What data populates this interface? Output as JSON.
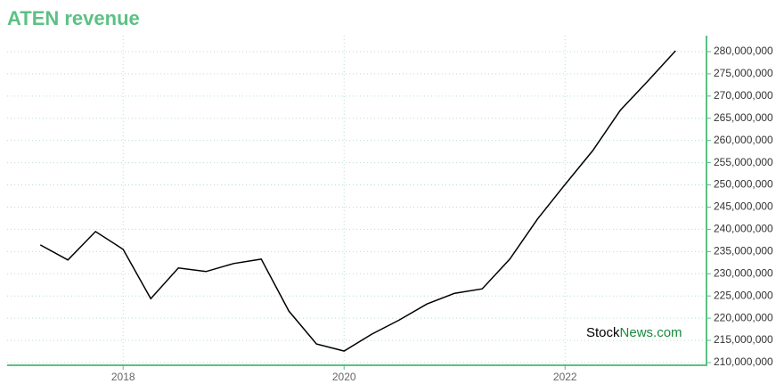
{
  "chart_data": {
    "type": "line",
    "title": "ATEN revenue",
    "watermark": {
      "first": "Stock",
      "second": "News.com"
    },
    "x": [
      2017.25,
      2017.5,
      2017.75,
      2018.0,
      2018.25,
      2018.5,
      2018.75,
      2019.0,
      2019.25,
      2019.5,
      2019.75,
      2020.0,
      2020.25,
      2020.5,
      2020.75,
      2021.0,
      2021.25,
      2021.5,
      2021.75,
      2022.0,
      2022.25,
      2022.5,
      2022.75,
      2023.0
    ],
    "series": [
      {
        "color": "#000000",
        "values": [
          236500000,
          233100000,
          239500000,
          235500000,
          224400000,
          231300000,
          230500000,
          232300000,
          233300000,
          221600000,
          214200000,
          212600000,
          216400000,
          219600000,
          223200000,
          225600000,
          226600000,
          233300000,
          242300000,
          250100000,
          257700000,
          266800000,
          273400000,
          280200000
        ]
      }
    ],
    "xlim": [
      2016.95,
      2023.28
    ],
    "xticks": [
      2018,
      2020,
      2022
    ],
    "ylim": [
      209400000,
      283600000
    ],
    "yticks": [
      {
        "value": 210000000,
        "label": "210,000,000"
      },
      {
        "value": 215000000,
        "label": "215,000,000"
      },
      {
        "value": 220000000,
        "label": "220,000,000"
      },
      {
        "value": 225000000,
        "label": "225,000,000"
      },
      {
        "value": 230000000,
        "label": "230,000,000"
      },
      {
        "value": 235000000,
        "label": "235,000,000"
      },
      {
        "value": 240000000,
        "label": "240,000,000"
      },
      {
        "value": 245000000,
        "label": "245,000,000"
      },
      {
        "value": 250000000,
        "label": "250,000,000"
      },
      {
        "value": 255000000,
        "label": "255,000,000"
      },
      {
        "value": 260000000,
        "label": "260,000,000"
      },
      {
        "value": 265000000,
        "label": "265,000,000"
      },
      {
        "value": 270000000,
        "label": "270,000,000"
      },
      {
        "value": 275000000,
        "label": "275,000,000"
      },
      {
        "value": 280000000,
        "label": "280,000,000"
      }
    ],
    "grid": true,
    "axis_color": "#5cc184"
  }
}
